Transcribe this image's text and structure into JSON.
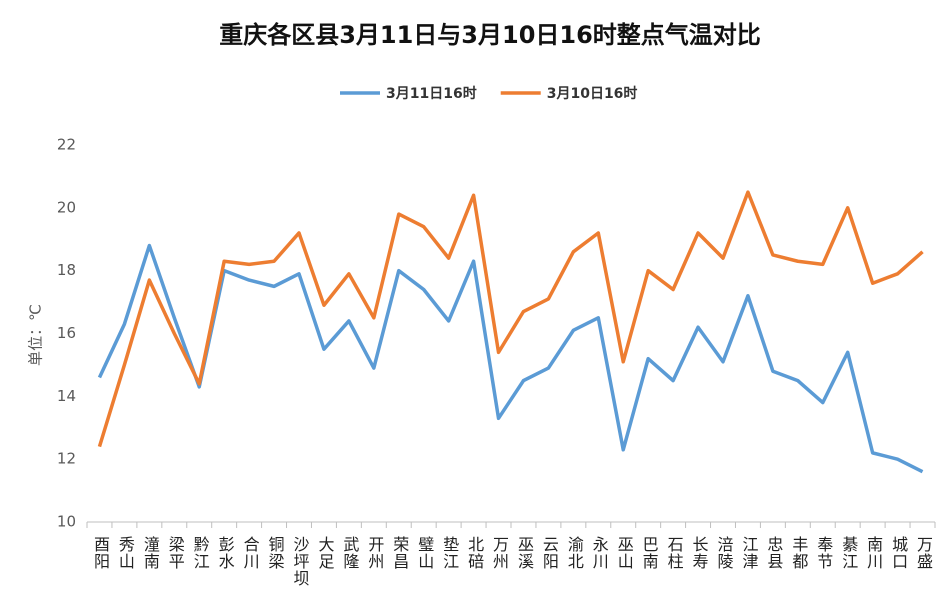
{
  "chart_data": {
    "type": "line",
    "title": "重庆各区县3月11日与3月10日16时整点气温对比",
    "y_label": "单位：℃",
    "categories": [
      "酉阳",
      "秀山",
      "潼南",
      "梁平",
      "黔江",
      "彭水",
      "合川",
      "铜梁",
      "沙坪坝",
      "大足",
      "武隆",
      "开州",
      "荣昌",
      "璧山",
      "垫江",
      "北碚",
      "万州",
      "巫溪",
      "云阳",
      "渝北",
      "永川",
      "巫山",
      "巴南",
      "石柱",
      "长寿",
      "涪陵",
      "江津",
      "忠县",
      "丰都",
      "奉节",
      "綦江",
      "南川",
      "城口",
      "万盛"
    ],
    "series": [
      {
        "name": "3月11日16时",
        "color": "#5b9bd5",
        "values": [
          14.6,
          16.3,
          18.8,
          16.5,
          14.3,
          18.0,
          17.7,
          17.5,
          17.9,
          15.5,
          16.4,
          14.9,
          18.0,
          17.4,
          16.4,
          18.3,
          13.3,
          14.5,
          14.9,
          16.1,
          16.5,
          12.3,
          15.2,
          14.5,
          16.2,
          15.1,
          17.2,
          14.8,
          14.5,
          13.8,
          15.4,
          12.2,
          12.0,
          11.6
        ]
      },
      {
        "name": "3月10日16时",
        "color": "#ed7d31",
        "values": [
          12.4,
          15.0,
          17.7,
          16.0,
          14.4,
          18.3,
          18.2,
          18.3,
          19.2,
          16.9,
          17.9,
          16.5,
          19.8,
          19.4,
          18.4,
          20.4,
          15.4,
          16.7,
          17.1,
          18.6,
          19.2,
          15.1,
          18.0,
          17.4,
          19.2,
          18.4,
          20.5,
          18.5,
          18.3,
          18.2,
          20.0,
          17.6,
          17.9,
          18.6
        ]
      }
    ],
    "ylim": [
      10,
      22
    ],
    "yticks": [
      10,
      12,
      14,
      16,
      18,
      20,
      22
    ],
    "grid": false,
    "legend": "top"
  }
}
